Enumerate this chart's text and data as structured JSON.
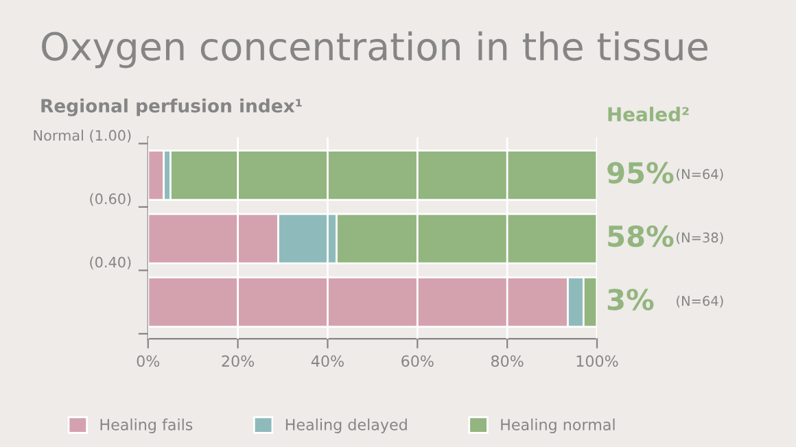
{
  "chart_data": {
    "type": "bar",
    "orientation": "horizontal",
    "stacked": true,
    "title": "Oxygen concentration in the tissue",
    "ylabel": "Regional perfusion index¹",
    "y2label": "Healed²",
    "categories": [
      null,
      null,
      null
    ],
    "series": [
      {
        "name": "Healing fails",
        "color": "#d4a2ae",
        "values": [
          3.5,
          29,
          93.5
        ]
      },
      {
        "name": "Healing delayed",
        "color": "#8fbabb",
        "values": [
          1.5,
          13,
          3.5
        ]
      },
      {
        "name": "Healing normal",
        "color": "#93b57f",
        "values": [
          95,
          58,
          3
        ],
        "value_labels": [
          "95%",
          "58%",
          "3%"
        ]
      }
    ],
    "annotations": [
      "Normal (1.00)",
      "(0.60)",
      "(0.40)",
      "(N=64)",
      "(N=38)",
      "(N=64)"
    ],
    "xlim": [
      0,
      100
    ],
    "xticks": [
      {
        "value": 0,
        "label": "0%"
      },
      {
        "value": 20,
        "label": "20%"
      },
      {
        "value": 40,
        "label": "40%"
      },
      {
        "value": 60,
        "label": "60%"
      },
      {
        "value": 80,
        "label": "80%"
      },
      {
        "value": 100,
        "label": "100%"
      }
    ],
    "grid": "x",
    "legend": "bottom"
  }
}
